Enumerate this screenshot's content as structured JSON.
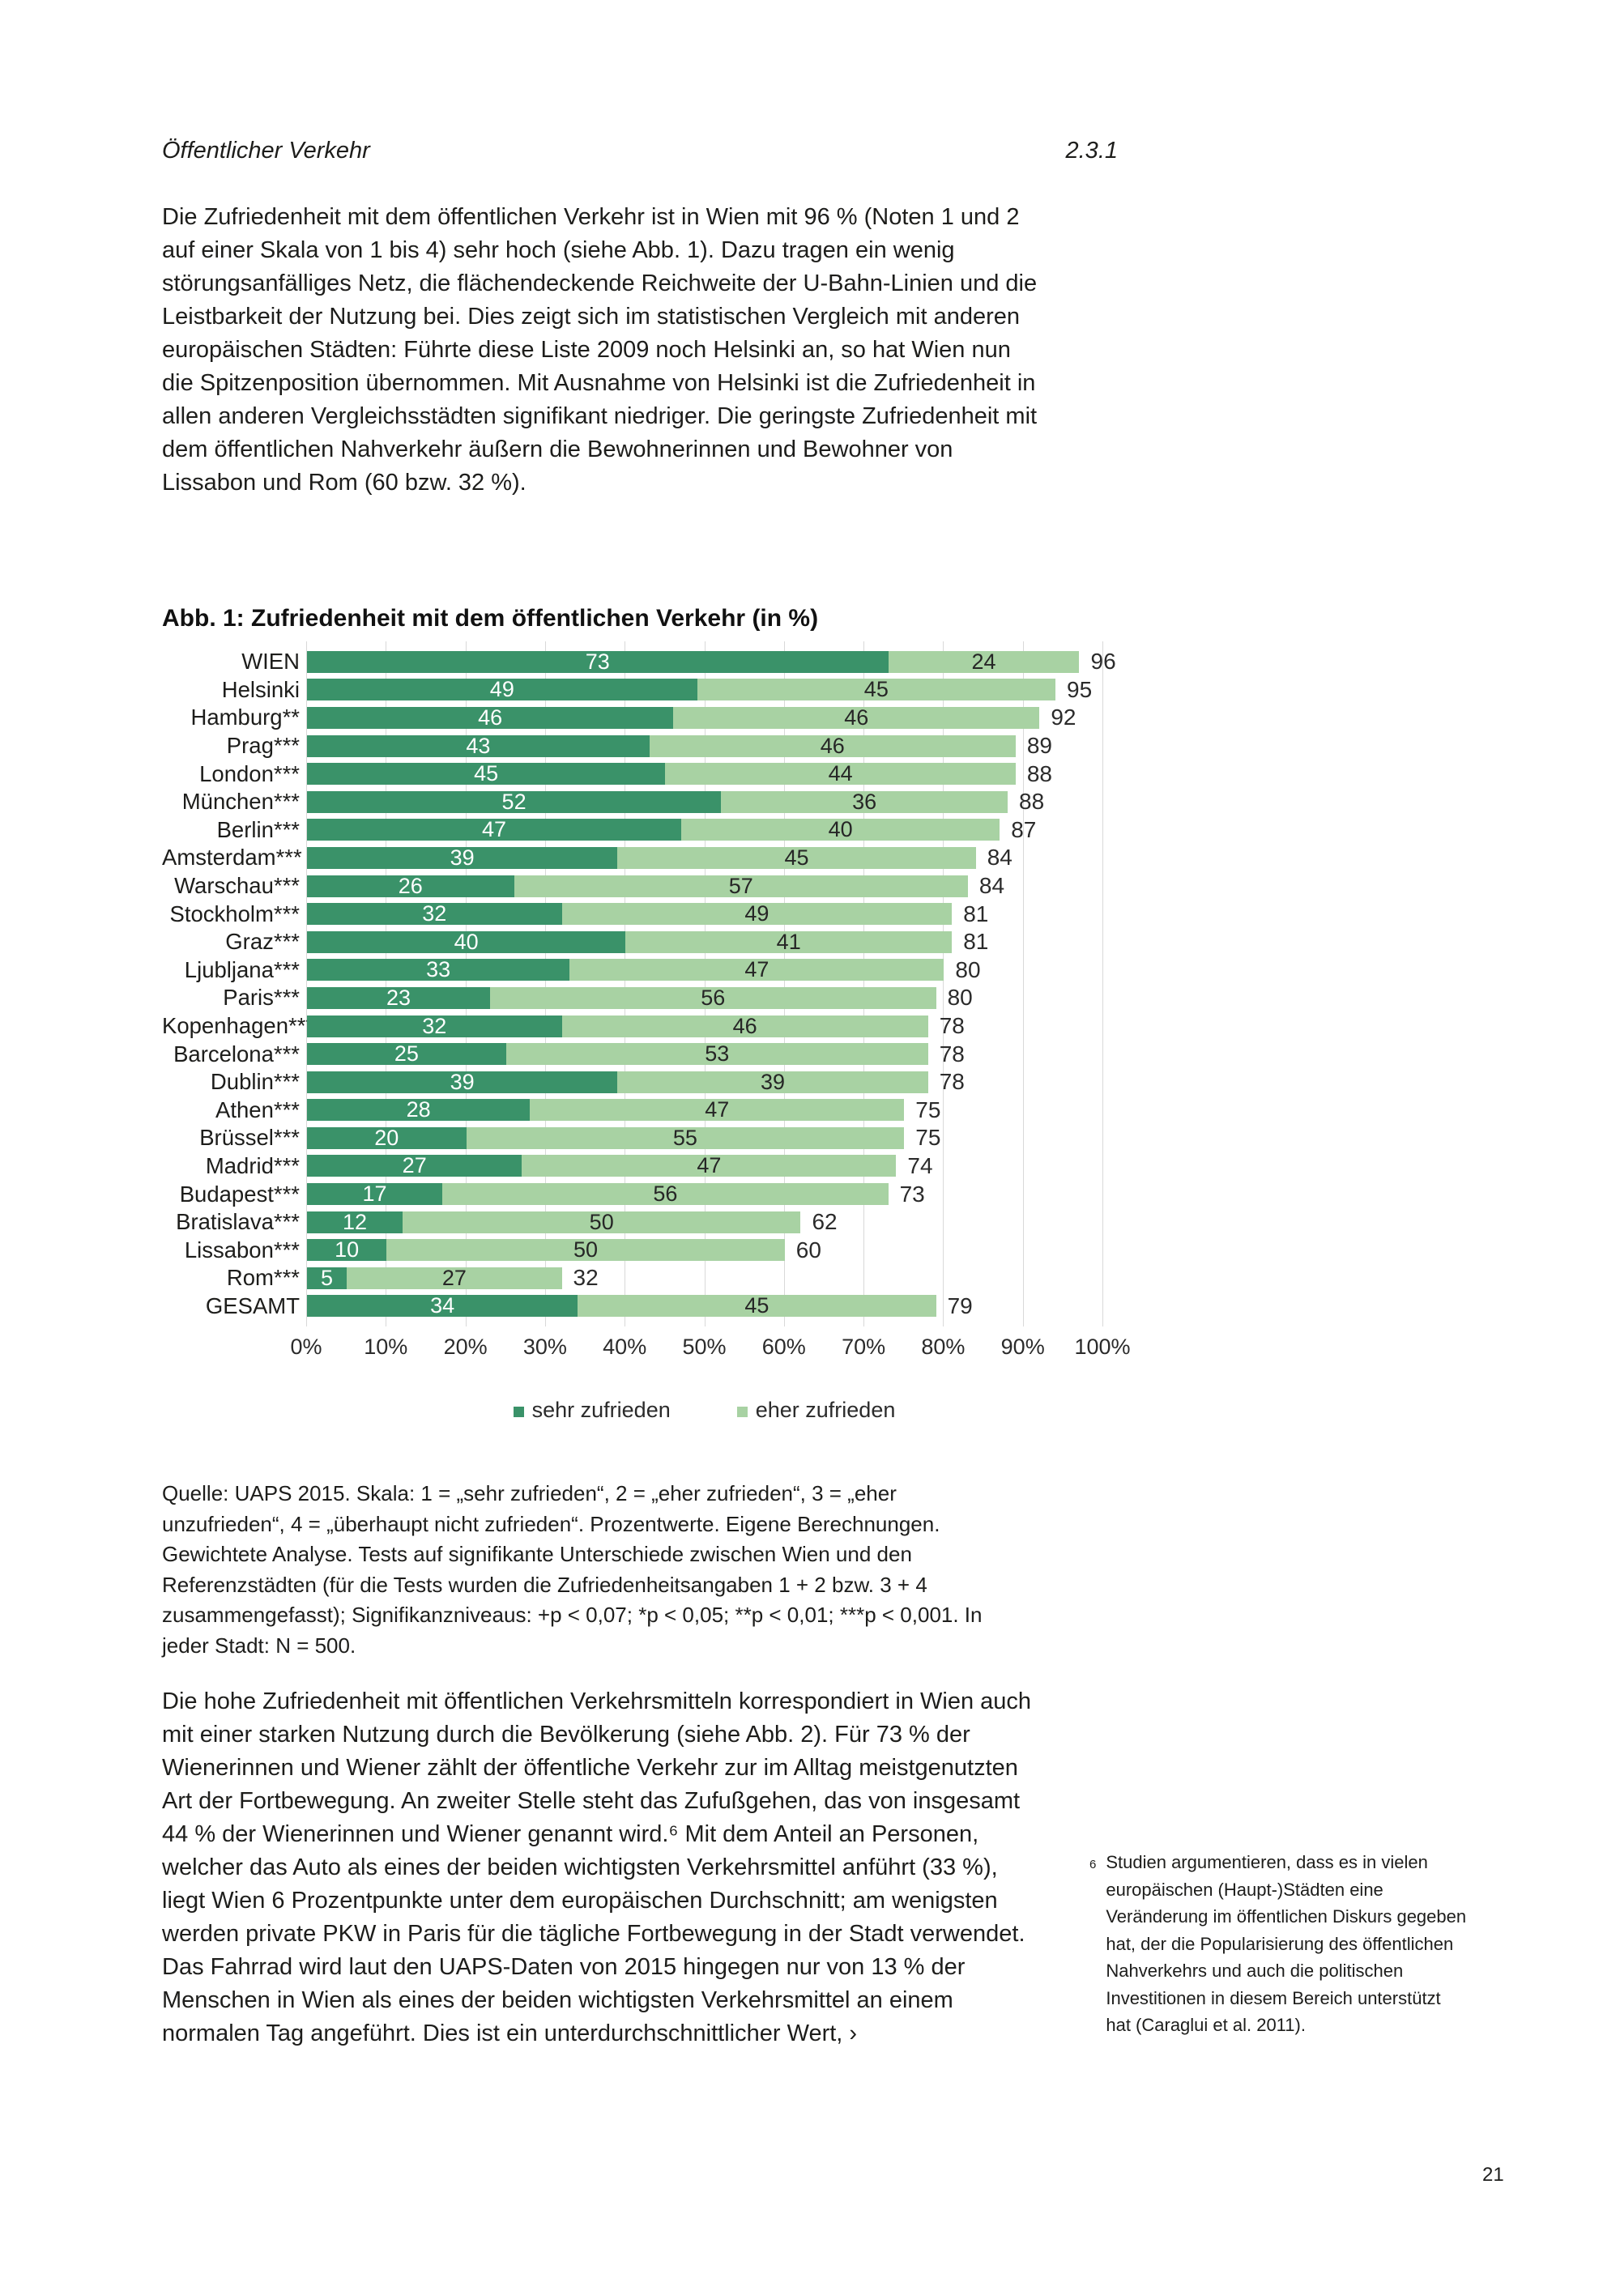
{
  "header": {
    "kicker": "Öffentlicher Verkehr",
    "section_number": "2.3.1"
  },
  "intro_paragraph": "Die Zufriedenheit mit dem öffentlichen Verkehr ist in Wien mit 96 % (Noten 1 und 2 auf einer Skala von 1 bis 4) sehr hoch (siehe Abb. 1). Dazu tragen ein wenig störungsanfälliges Netz, die flächendeckende Reichweite der U-Bahn-Linien und die Leistbarkeit der Nutzung bei. Dies zeigt sich im statistischen Vergleich mit anderen europäischen Städten: Führte diese Liste 2009 noch Helsinki an, so hat Wien nun die Spitzenposition übernommen. Mit Ausnahme von Helsinki ist die Zufriedenheit in allen anderen Vergleichsstädten signifikant niedriger. Die geringste Zufriedenheit mit dem öffentlichen Nahverkehr äußern die Bewohnerinnen und Bewohner von Lissabon und Rom (60 bzw. 32 %).",
  "chart_data": {
    "type": "bar",
    "orientation": "horizontal",
    "stacked": true,
    "title": "Abb. 1: Zufriedenheit mit dem öffentlichen Verkehr (in %)",
    "categories": [
      "WIEN",
      "Helsinki",
      "Hamburg**",
      "Prag***",
      "London***",
      "München***",
      "Berlin***",
      "Amsterdam***",
      "Warschau***",
      "Stockholm***",
      "Graz***",
      "Ljubljana***",
      "Paris***",
      "Kopenhagen***",
      "Barcelona***",
      "Dublin***",
      "Athen***",
      "Brüssel***",
      "Madrid***",
      "Budapest***",
      "Bratislava***",
      "Lissabon***",
      "Rom***",
      "GESAMT"
    ],
    "series": [
      {
        "name": "sehr zufrieden",
        "color": "#3a9269",
        "label_color": "#ffffff",
        "values": [
          73,
          49,
          46,
          43,
          45,
          52,
          47,
          39,
          26,
          32,
          40,
          33,
          23,
          32,
          25,
          39,
          28,
          20,
          27,
          17,
          12,
          10,
          5,
          34
        ]
      },
      {
        "name": "eher zufrieden",
        "color": "#a8d2a3",
        "label_color": "#262626",
        "values": [
          24,
          45,
          46,
          46,
          44,
          36,
          40,
          45,
          57,
          49,
          41,
          47,
          56,
          46,
          53,
          39,
          47,
          55,
          47,
          56,
          50,
          50,
          27,
          45
        ]
      }
    ],
    "totals": [
      96,
      95,
      92,
      89,
      88,
      88,
      87,
      84,
      84,
      81,
      81,
      80,
      80,
      78,
      78,
      78,
      75,
      75,
      74,
      73,
      62,
      60,
      32,
      79
    ],
    "x_axis": {
      "min": 0,
      "max": 100,
      "ticks": [
        "0%",
        "10%",
        "20%",
        "30%",
        "40%",
        "50%",
        "60%",
        "70%",
        "80%",
        "90%",
        "100%"
      ]
    },
    "legend": [
      "sehr zufrieden",
      "eher zufrieden"
    ],
    "grid": true,
    "grid_color": "#d9d9d9"
  },
  "source_note": "Quelle: UAPS 2015. Skala: 1 = „sehr zufrieden“, 2 = „eher zufrieden“, 3 = „eher unzufrieden“, 4 = „überhaupt nicht zufrieden“. Prozentwerte. Eigene Berechnungen. Gewichtete Analyse. Tests auf signifikante Unterschiede zwischen Wien und den Referenzstädten (für die Tests wurden die Zufriedenheitsangaben 1 + 2 bzw. 3 + 4 zusammengefasst); Signifikanzniveaus: +p < 0,07; *p < 0,05; **p < 0,01; ***p < 0,001. In jeder Stadt: N = 500.",
  "second_paragraph": "Die hohe Zufriedenheit mit öffentlichen Verkehrsmitteln korrespondiert in Wien auch mit einer starken Nutzung durch die Bevölkerung (siehe Abb. 2). Für 73 % der Wienerinnen und Wiener zählt der öffentliche Verkehr zur im Alltag meistgenutzten Art der Fortbewegung. An zweiter Stelle steht das Zufußgehen, das von insgesamt 44 % der Wienerinnen und Wiener genannt wird.⁶ Mit dem Anteil an Personen, welcher das Auto als eines der beiden wichtigsten Verkehrsmittel anführt (33 %), liegt Wien 6 Prozentpunkte unter dem europäischen Durchschnitt; am wenigsten werden private PKW in Paris für die tägliche Fortbewegung in der Stadt verwendet. Das Fahrrad wird laut den UAPS-Daten von 2015 hingegen nur von 13 % der Menschen in Wien als eines der beiden wichtigsten Verkehrsmittel an einem normalen Tag angeführt. Dies ist ein unterdurchschnittlicher Wert, ›",
  "footnote": {
    "marker": "6",
    "text": "Studien argumentieren, dass es in vielen europäischen (Haupt-)Städten eine Veränderung im öffentlichen Diskurs gegeben hat, der die Popularisierung des öffentlichen Nahverkehrs und auch die politischen Investitionen in diesem Bereich unterstützt hat (Caraglui et al. 2011).",
    "reference": "Caraglui et al. 2011"
  },
  "page_number": "21"
}
